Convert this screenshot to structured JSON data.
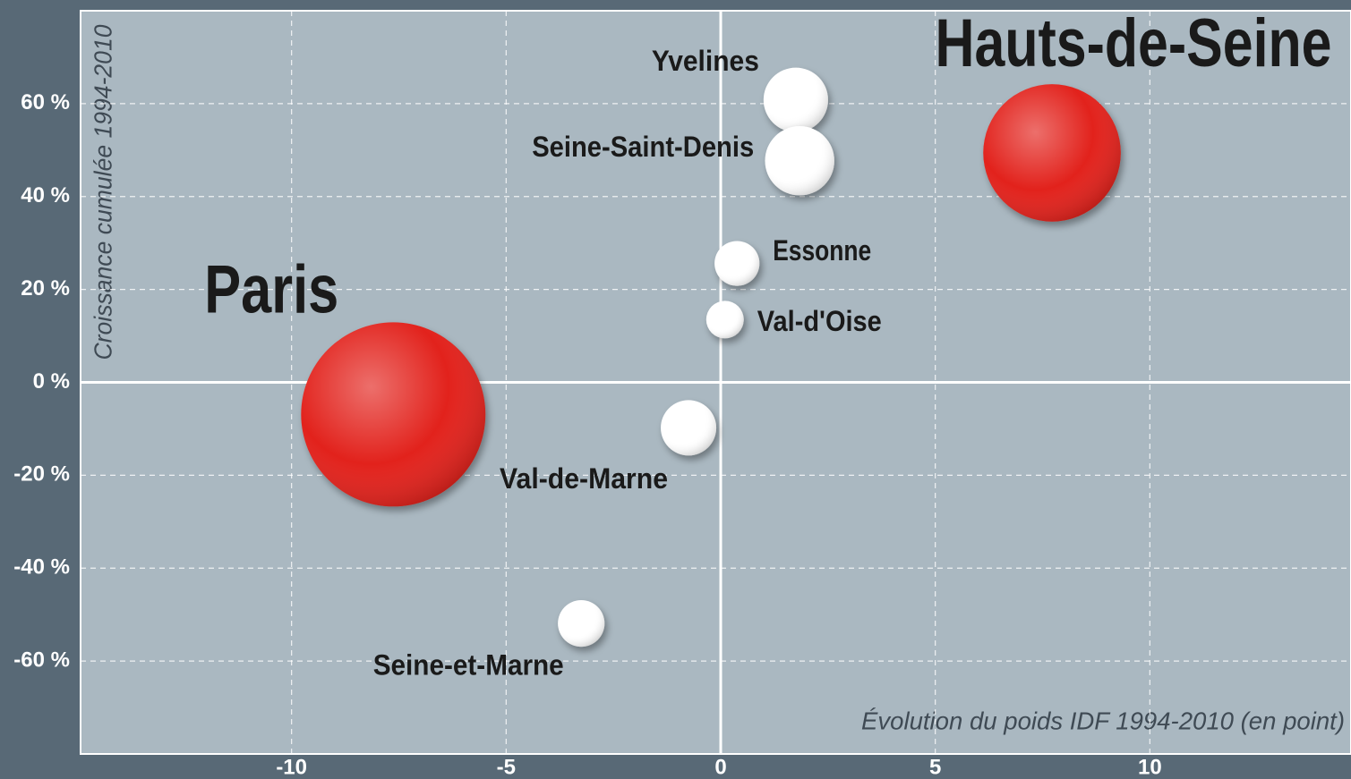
{
  "chart_data": {
    "type": "bubble",
    "xlabel": "Évolution du poids IDF 1994-2010 (en point)",
    "ylabel": "Croissance cumulée 1994-2010",
    "points": [
      "Paris",
      "Hauts-de-Seine",
      "Yvelines",
      "Seine-Saint-Denis",
      "Essonne",
      "Val-d'Oise",
      "Val-de-Marne",
      "Seine-et-Marne"
    ],
    "x": [
      -7.63,
      7.72,
      1.75,
      1.84,
      0.38,
      0.1,
      -0.75,
      -3.25
    ],
    "values": [
      -6.9,
      49.4,
      60.8,
      47.7,
      25.6,
      13.5,
      -9.8,
      -51.9
    ],
    "sizes": [
      106,
      59,
      13,
      15,
      6.3,
      4.4,
      9.6,
      6.8
    ],
    "colors": [
      "#e2231a",
      "#e2231a",
      "#ffffff",
      "#ffffff",
      "#ffffff",
      "#ffffff",
      "#ffffff",
      "#ffffff"
    ],
    "xlim": [
      -15,
      15
    ],
    "xticks": [
      -10,
      -5,
      0,
      5,
      10
    ],
    "ylim": [
      -80,
      80
    ],
    "yticks": [
      {
        "value": -60,
        "label": "-60 %"
      },
      {
        "value": -40,
        "label": "-40 %"
      },
      {
        "value": -20,
        "label": "-20 %"
      },
      {
        "value": 0,
        "label": "0 %"
      },
      {
        "value": 20,
        "label": "20 %"
      },
      {
        "value": 40,
        "label": "40 %"
      },
      {
        "value": 60,
        "label": "60 %"
      }
    ],
    "grid": true
  }
}
